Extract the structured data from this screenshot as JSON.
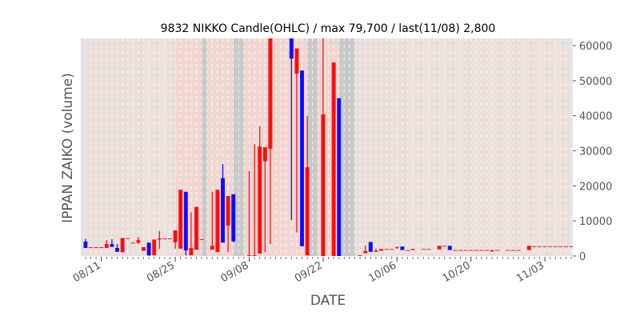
{
  "chart_data": {
    "type": "candlestick",
    "title": "9832 NIKKO Candle(OHLC) / max 79,700 / last(11/08) 2,800",
    "xlabel": "DATE",
    "ylabel": "IPPAN ZAIKO (volume)",
    "ylim": [
      0,
      62000
    ],
    "yticks": [
      "0",
      "10000",
      "20000",
      "30000",
      "40000",
      "50000",
      "60000"
    ],
    "ytick_values": [
      0,
      10000,
      20000,
      30000,
      40000,
      50000,
      60000
    ],
    "xticks": [
      "08/11",
      "08/25",
      "09/08",
      "09/22",
      "10/06",
      "10/20",
      "11/03"
    ],
    "x_range": [
      "08/07",
      "11/09"
    ],
    "grid": true,
    "colors": {
      "up": "#ff0000",
      "down": "#0000ff",
      "normal_bg": "#eadfdb",
      "pink_bg": "#f0d6d1",
      "grey_bg": "#c9c9c9",
      "edge_bg": "#e3e3e3"
    },
    "shading": [
      {
        "from": "08/25",
        "to": "08/29",
        "kind": "pink"
      },
      {
        "from": "08/30",
        "to": "08/30",
        "kind": "grey"
      },
      {
        "from": "08/31",
        "to": "09/04",
        "kind": "pink"
      },
      {
        "from": "09/05",
        "to": "09/06",
        "kind": "grey"
      },
      {
        "from": "09/07",
        "to": "09/18",
        "kind": "pink"
      },
      {
        "from": "09/19",
        "to": "09/20",
        "kind": "grey"
      },
      {
        "from": "09/21",
        "to": "09/24",
        "kind": "pink"
      },
      {
        "from": "09/25",
        "to": "09/27",
        "kind": "grey"
      }
    ],
    "columns": [
      "date",
      "open",
      "high",
      "low",
      "close"
    ],
    "candles": [
      [
        "08/08",
        4100,
        4900,
        2300,
        2300
      ],
      [
        "08/09",
        2500,
        2500,
        2500,
        2500
      ],
      [
        "08/10",
        2500,
        2500,
        2500,
        2500
      ],
      [
        "08/11",
        2500,
        2500,
        2500,
        2500
      ],
      [
        "08/12",
        2300,
        4500,
        2300,
        3400
      ],
      [
        "08/13",
        3400,
        4800,
        2600,
        2600
      ],
      [
        "08/14",
        2300,
        3400,
        1200,
        1200
      ],
      [
        "08/15",
        1100,
        5100,
        1000,
        5100
      ],
      [
        "08/16",
        5100,
        5100,
        5100,
        5100
      ],
      [
        "08/17",
        3800,
        3800,
        3800,
        3800
      ],
      [
        "08/18",
        3800,
        5400,
        3400,
        4500
      ],
      [
        "08/19",
        1500,
        2500,
        1500,
        2500
      ],
      [
        "08/20",
        3800,
        3800,
        0,
        200
      ],
      [
        "08/21",
        200,
        4700,
        200,
        4700
      ],
      [
        "08/22",
        4700,
        7100,
        2000,
        5000
      ],
      [
        "08/23",
        5000,
        5000,
        5000,
        5000
      ],
      [
        "08/24",
        5000,
        5000,
        5000,
        5000
      ],
      [
        "08/25",
        3900,
        7300,
        2100,
        7300
      ],
      [
        "08/26",
        2100,
        18900,
        2100,
        18900
      ],
      [
        "08/27",
        18300,
        18300,
        200,
        1600
      ],
      [
        "08/28",
        200,
        12500,
        200,
        2300
      ],
      [
        "08/29",
        1800,
        14000,
        1800,
        14000
      ],
      [
        "08/30",
        4800,
        4800,
        4800,
        4800
      ],
      [
        "09/01",
        1800,
        18300,
        1800,
        2900
      ],
      [
        "09/02",
        1100,
        18900,
        1100,
        18900
      ],
      [
        "09/03",
        22200,
        26200,
        3800,
        3800
      ],
      [
        "09/04",
        8700,
        17100,
        1100,
        17100
      ],
      [
        "09/05",
        17600,
        17600,
        3900,
        4200
      ],
      [
        "09/08",
        0,
        24200,
        0,
        200
      ],
      [
        "09/09",
        0,
        31900,
        0,
        200
      ],
      [
        "09/10",
        700,
        37000,
        700,
        31200
      ],
      [
        "09/11",
        27000,
        31000,
        1100,
        31000
      ],
      [
        "09/12",
        30600,
        79700,
        3400,
        79700
      ],
      [
        "09/16",
        70000,
        70000,
        10300,
        56300
      ],
      [
        "09/17",
        52000,
        59200,
        6700,
        59200
      ],
      [
        "09/18",
        52900,
        52900,
        2800,
        2800
      ],
      [
        "09/19",
        200,
        39900,
        200,
        25300
      ],
      [
        "09/22",
        0,
        66000,
        0,
        40400
      ],
      [
        "09/24",
        0,
        55200,
        0,
        55200
      ],
      [
        "09/25",
        45000,
        45000,
        0,
        0
      ],
      [
        "09/29",
        200,
        200,
        200,
        200
      ],
      [
        "09/30",
        800,
        3000,
        800,
        1400
      ],
      [
        "10/01",
        4000,
        4000,
        1200,
        1200
      ],
      [
        "10/02",
        1200,
        2100,
        1200,
        1500
      ],
      [
        "10/03",
        1500,
        2000,
        1500,
        2000
      ],
      [
        "10/04",
        2000,
        2000,
        2000,
        2000
      ],
      [
        "10/05",
        2000,
        2000,
        2000,
        2000
      ],
      [
        "10/06",
        2600,
        2600,
        2000,
        2600
      ],
      [
        "10/07",
        2700,
        2700,
        1700,
        1700
      ],
      [
        "10/08",
        1700,
        1700,
        1700,
        1700
      ],
      [
        "10/09",
        1700,
        2000,
        1700,
        2000
      ],
      [
        "10/11",
        2000,
        2000,
        2000,
        2000
      ],
      [
        "10/12",
        2000,
        2000,
        2000,
        2000
      ],
      [
        "10/14",
        1900,
        2900,
        1900,
        2900
      ],
      [
        "10/15",
        2900,
        2900,
        2900,
        2900
      ],
      [
        "10/16",
        2900,
        2900,
        1700,
        1700
      ],
      [
        "10/17",
        1700,
        1700,
        1700,
        1700
      ],
      [
        "10/18",
        1700,
        1700,
        1700,
        1700
      ],
      [
        "10/19",
        1700,
        1700,
        1700,
        1700
      ],
      [
        "10/20",
        1700,
        1700,
        1700,
        1700
      ],
      [
        "10/21",
        1700,
        1700,
        1700,
        1700
      ],
      [
        "10/22",
        1700,
        1700,
        1700,
        1700
      ],
      [
        "10/23",
        1700,
        1700,
        1700,
        1700
      ],
      [
        "10/24",
        1300,
        1700,
        1300,
        1700
      ],
      [
        "10/25",
        1700,
        1700,
        1700,
        1700
      ],
      [
        "10/27",
        1700,
        1700,
        1700,
        1700
      ],
      [
        "10/28",
        1700,
        1700,
        1700,
        1700
      ],
      [
        "10/29",
        1700,
        1700,
        1700,
        1700
      ],
      [
        "10/31",
        1700,
        2900,
        1700,
        2900
      ],
      [
        "11/01",
        2800,
        2800,
        2800,
        2800
      ],
      [
        "11/02",
        2800,
        2800,
        2800,
        2800
      ],
      [
        "11/03",
        2800,
        2800,
        2800,
        2800
      ],
      [
        "11/04",
        2800,
        2800,
        2800,
        2800
      ],
      [
        "11/05",
        2800,
        2800,
        2800,
        2800
      ],
      [
        "11/06",
        2800,
        2800,
        2800,
        2800
      ],
      [
        "11/07",
        2800,
        2800,
        2800,
        2800
      ],
      [
        "11/08",
        2800,
        2800,
        2800,
        2800
      ]
    ]
  }
}
